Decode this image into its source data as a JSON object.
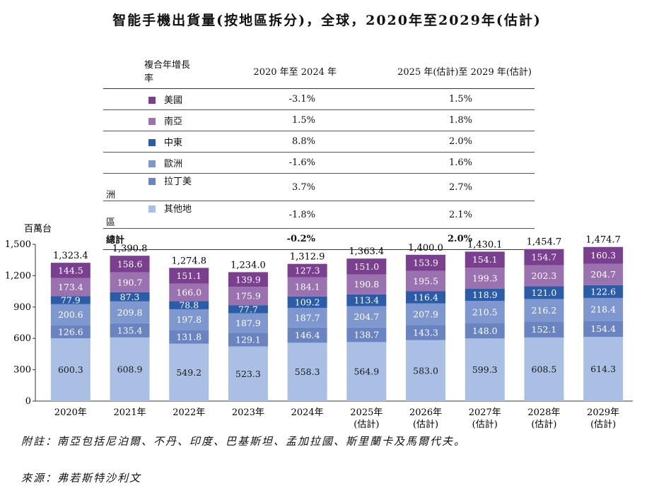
{
  "title": "智能手機出貨量(按地區拆分)，全球，2020年至2029年(估計)",
  "cagr_table": {
    "headers": [
      "複合年增長率",
      "2020 年至 2024 年",
      "2025 年(估計)至 2029 年(估計)"
    ],
    "rows": [
      {
        "name": "美國",
        "color": "#7a3f8f",
        "v1": "-3.1%",
        "v2": "1.5%"
      },
      {
        "name": "南亞",
        "color": "#9b72b0",
        "v1": "1.5%",
        "v2": "1.8%"
      },
      {
        "name": "中東",
        "color": "#2a5ca8",
        "v1": "8.8%",
        "v2": "2.0%"
      },
      {
        "name": "歐洲",
        "color": "#7e98cf",
        "v1": "-1.6%",
        "v2": "1.6%"
      },
      {
        "name": "拉丁美洲",
        "color": "#6a84c2",
        "v1": "3.7%",
        "v2": "2.7%"
      },
      {
        "name": "其他地區",
        "color": "#a9bfe3",
        "v1": "-1.8%",
        "v2": "2.1%"
      }
    ],
    "total": {
      "name": "總計",
      "v1": "-0.2%",
      "v2": "2.0%"
    }
  },
  "chart_data": {
    "type": "bar",
    "stacked": true,
    "ylabel": "百萬台",
    "ylim": [
      0,
      1500
    ],
    "yticks": [
      0,
      300,
      600,
      900,
      1200,
      1500
    ],
    "ytick_labels": [
      "0",
      "300",
      "600",
      "900",
      "1,200",
      "1,500"
    ],
    "categories": [
      "2020年",
      "2021年",
      "2022年",
      "2023年",
      "2024年",
      "2025年",
      "2026年",
      "2027年",
      "2028年",
      "2029年"
    ],
    "category_sublabels": [
      "",
      "",
      "",
      "",
      "",
      "(估計)",
      "(估計)",
      "(估計)",
      "(估計)",
      "(估計)"
    ],
    "series": [
      {
        "name": "其他地區",
        "color": "#a9bfe3",
        "values": [
          600.3,
          608.9,
          549.2,
          523.3,
          558.3,
          564.9,
          583.0,
          599.3,
          608.5,
          614.3
        ],
        "labels": [
          "600.3",
          "608.9",
          "549.2",
          "523.3",
          "558.3",
          "564.9",
          "583.0",
          "599.3",
          "608.5",
          "614.3"
        ]
      },
      {
        "name": "拉丁美洲",
        "color": "#6a84c2",
        "values": [
          126.6,
          135.4,
          131.8,
          129.1,
          146.4,
          138.7,
          143.3,
          148.0,
          152.1,
          154.4
        ],
        "labels": [
          "126.6",
          "135.4",
          "131.8",
          "129.1",
          "146.4",
          "138.7",
          "143.3",
          "148.0",
          "152.1",
          "154.4"
        ]
      },
      {
        "name": "歐洲",
        "color": "#7e98cf",
        "values": [
          200.6,
          209.8,
          197.8,
          187.9,
          187.7,
          204.7,
          207.9,
          210.5,
          216.2,
          218.4
        ],
        "labels": [
          "200.6",
          "209.8",
          "197.8",
          "187.9",
          "187.7",
          "204.7",
          "207.9",
          "210.5",
          "216.2",
          "218.4"
        ]
      },
      {
        "name": "中東",
        "color": "#2a5ca8",
        "values": [
          77.9,
          87.3,
          78.8,
          77.7,
          109.2,
          113.4,
          116.4,
          118.9,
          121.0,
          122.6
        ],
        "labels": [
          "77.9",
          "87.3",
          "78.8",
          "77.7",
          "109.2",
          "113.4",
          "116.4",
          "118.9",
          "121.0",
          "122.6"
        ]
      },
      {
        "name": "南亞",
        "color": "#9b72b0",
        "values": [
          173.4,
          190.7,
          166.0,
          175.9,
          184.1,
          190.8,
          195.5,
          199.3,
          202.3,
          204.7
        ],
        "labels": [
          "173.4",
          "190.7",
          "166.0",
          "175.9",
          "184.1",
          "190.8",
          "195.5",
          "199.3",
          "202.3",
          "204.7"
        ]
      },
      {
        "name": "美國",
        "color": "#7a3f8f",
        "values": [
          144.5,
          158.6,
          151.1,
          139.9,
          127.3,
          151.0,
          153.9,
          154.1,
          154.7,
          160.3
        ],
        "labels": [
          "144.5",
          "158.6",
          "151.1",
          "139.9",
          "127.3",
          "151.0",
          "153.9",
          "154.1",
          "154.7",
          "160.3"
        ]
      }
    ],
    "totals": [
      1323.4,
      1390.8,
      1274.8,
      1234.0,
      1312.9,
      1363.4,
      1400.0,
      1430.1,
      1454.7,
      1474.7
    ],
    "total_labels": [
      "1,323.4",
      "1,390.8",
      "1,274.8",
      "1,234.0",
      "1,312.9",
      "1,363.4",
      "1,400.0",
      "1,430.1",
      "1,454.7",
      "1,474.7"
    ]
  },
  "notes": {
    "footnote": "附註：南亞包括尼泊爾、不丹、印度、巴基斯坦、孟加拉國、斯里蘭卡及馬爾代夫。",
    "source": "來源：弗若斯特沙利文"
  }
}
